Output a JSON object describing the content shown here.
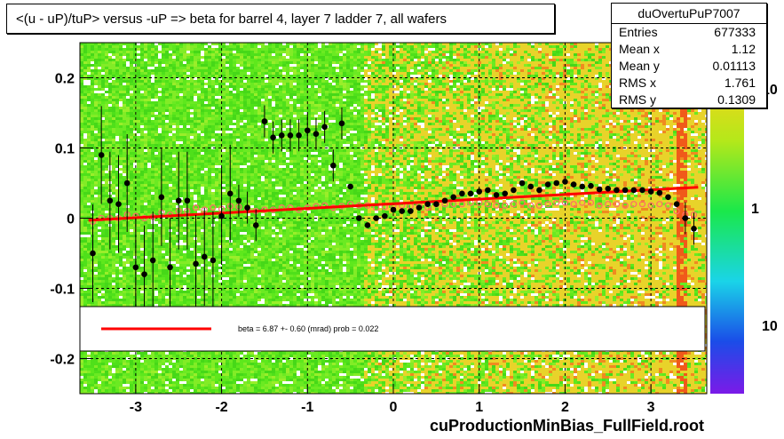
{
  "title": "<(u - uP)/tuP> versus  -uP => beta for barrel 4, layer 7 ladder 7, all wafers",
  "footer": "cuProductionMinBias_FullField.root",
  "stats": {
    "name": "duOvertuPuP7007",
    "rows": [
      {
        "key": "Entries",
        "value": "677333"
      },
      {
        "key": "Mean x",
        "value": "1.12"
      },
      {
        "key": "Mean y",
        "value": "0.01113"
      },
      {
        "key": "RMS x",
        "value": "1.761"
      },
      {
        "key": "RMS y",
        "value": "0.1309"
      }
    ]
  },
  "legend_text": "beta =    6.87 +-  0.60 (mrad) prob = 0.022",
  "colors": {
    "fit_line": "#ff0000",
    "black_points": "#000000",
    "open_points": "#ff6a6a",
    "green": "#5ee81c",
    "yellow": "#e8d32a",
    "orange": "#f08a20"
  },
  "chart_data": {
    "type": "scatter",
    "xlim": [
      -3.65,
      3.65
    ],
    "ylim": [
      -0.25,
      0.25
    ],
    "x_ticks": [
      -3,
      -2,
      -1,
      0,
      1,
      2,
      3
    ],
    "y_ticks": [
      -0.2,
      -0.1,
      0,
      0.1,
      0.2
    ],
    "x_tick_labels": [
      "-3",
      "-2",
      "-1",
      "0",
      "1",
      "2",
      "3"
    ],
    "y_tick_labels": [
      "-0.2",
      "-0.1",
      "0",
      "0.1",
      "0.2"
    ],
    "colorbar_labels": [
      "10",
      "1",
      "10"
    ],
    "fit_line": {
      "x": [
        -3.55,
        3.55
      ],
      "y": [
        -0.003,
        0.044
      ]
    },
    "black_series": {
      "x": [
        -3.5,
        -3.4,
        -3.3,
        -3.2,
        -3.1,
        -3.0,
        -2.9,
        -2.8,
        -2.7,
        -2.6,
        -2.5,
        -2.4,
        -2.3,
        -2.2,
        -2.1,
        -2.0,
        -1.9,
        -1.8,
        -1.7,
        -1.6,
        -1.5,
        -1.4,
        -1.3,
        -1.2,
        -1.1,
        -1.0,
        -0.9,
        -0.8,
        -0.7,
        -0.6,
        -0.5,
        -0.4,
        -0.3,
        -0.2,
        -0.1,
        0.0,
        0.1,
        0.2,
        0.3,
        0.4,
        0.5,
        0.6,
        0.7,
        0.8,
        0.9,
        1.0,
        1.1,
        1.2,
        1.3,
        1.4,
        1.5,
        1.6,
        1.7,
        1.8,
        1.9,
        2.0,
        2.1,
        2.2,
        2.3,
        2.4,
        2.5,
        2.6,
        2.7,
        2.8,
        2.9,
        3.0,
        3.1,
        3.2,
        3.3,
        3.4,
        3.5
      ],
      "y": [
        -0.05,
        0.09,
        0.025,
        0.02,
        0.05,
        -0.07,
        -0.08,
        -0.06,
        0.03,
        -0.07,
        0.025,
        0.025,
        -0.065,
        -0.055,
        -0.06,
        0.003,
        0.035,
        0.025,
        0.015,
        -0.01,
        0.138,
        0.115,
        0.118,
        0.118,
        0.118,
        0.125,
        0.12,
        0.13,
        0.075,
        0.135,
        0.045,
        0.0,
        -0.01,
        0.0,
        0.003,
        0.012,
        0.01,
        0.01,
        0.015,
        0.02,
        0.02,
        0.025,
        0.03,
        0.035,
        0.035,
        0.038,
        0.04,
        0.033,
        0.035,
        0.04,
        0.05,
        0.045,
        0.04,
        0.048,
        0.05,
        0.052,
        0.048,
        0.045,
        0.046,
        0.041,
        0.042,
        0.04,
        0.04,
        0.04,
        0.04,
        0.038,
        0.036,
        0.03,
        0.02,
        0.0,
        -0.015
      ]
    },
    "open_series": {
      "x": [
        -3.5,
        -3.4,
        -3.3,
        -3.2,
        -3.1,
        -3.0,
        -2.9,
        -2.8,
        -2.7,
        -2.6,
        -2.5,
        -2.4,
        -2.3,
        -2.2,
        -2.1,
        -2.0,
        -1.9,
        -1.8,
        -1.7,
        -1.6,
        -1.5,
        -1.4,
        -1.3,
        -1.2,
        -1.1,
        -1.0,
        -0.9,
        -0.8,
        -0.7,
        -0.6,
        -0.5,
        -0.4,
        -0.3,
        -0.2,
        -0.1,
        0.0,
        0.1,
        0.2,
        0.3,
        0.4,
        0.5,
        0.6,
        0.7,
        0.8,
        0.9,
        1.0,
        1.1,
        1.2,
        1.3,
        1.4,
        1.5,
        1.6,
        1.7,
        1.8,
        1.9,
        2.0,
        2.1,
        2.2,
        2.3,
        2.4,
        2.5,
        2.6,
        2.7,
        2.8,
        2.9,
        3.0,
        3.1,
        3.2,
        3.3,
        3.4,
        3.5
      ],
      "y": [
        -0.005,
        0.0,
        0.0,
        0.0,
        0.005,
        0.003,
        0.0,
        0.002,
        0.008,
        0.005,
        0.01,
        0.01,
        0.015,
        0.012,
        0.015,
        0.013,
        0.017,
        0.016,
        0.013,
        0.01,
        0.012,
        0.012,
        0.015,
        0.015,
        0.012,
        0.015,
        0.017,
        0.018,
        0.015,
        0.017,
        0.02,
        0.018,
        0.018,
        0.015,
        0.016,
        0.018,
        0.018,
        0.017,
        0.018,
        0.015,
        0.02,
        0.02,
        0.02,
        0.02,
        0.022,
        0.022,
        0.02,
        0.018,
        0.018,
        0.02,
        0.022,
        0.018,
        0.018,
        0.02,
        0.022,
        0.022,
        0.02,
        0.022,
        0.022,
        0.018,
        0.02,
        0.02,
        0.018,
        0.02,
        0.02,
        0.018,
        0.02,
        0.018,
        0.01,
        0.005,
        0.005
      ]
    }
  }
}
